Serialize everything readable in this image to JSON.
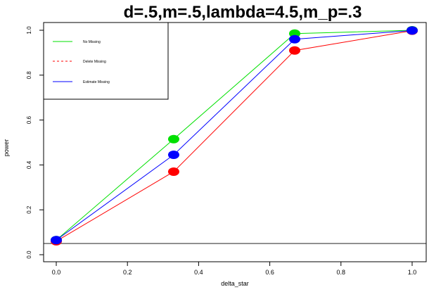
{
  "chart_data": {
    "type": "line",
    "title": "d=.5,m=.5,lambda=4.5,m_p=.3",
    "xlabel": "delta_star",
    "ylabel": "power",
    "xlim": [
      0.0,
      1.0
    ],
    "ylim": [
      0.0,
      1.0
    ],
    "x_ticks": [
      0.0,
      0.2,
      0.4,
      0.6,
      0.8,
      1.0
    ],
    "x_tick_labels": [
      "0.0",
      "0.2",
      "0.4",
      "0.6",
      "0.8",
      "1.0"
    ],
    "y_ticks": [
      0.0,
      0.2,
      0.4,
      0.6,
      0.8,
      1.0
    ],
    "y_tick_labels": [
      "0.0",
      "0.2",
      "0.4",
      "0.6",
      "0.8",
      "1.0"
    ],
    "hline": 0.05,
    "legend_position": "top-left",
    "x": [
      0.0,
      0.33,
      0.67,
      1.0
    ],
    "series": [
      {
        "name": "No Missing",
        "color": "#00e000",
        "dash": "solid",
        "values": [
          0.065,
          0.515,
          0.985,
          1.0
        ]
      },
      {
        "name": "Delete Missing",
        "color": "#ff0000",
        "dash": "dashed",
        "values": [
          0.06,
          0.37,
          0.91,
          0.998
        ]
      },
      {
        "name": "Estimate Missing",
        "color": "#0000ff",
        "dash": "solid",
        "values": [
          0.065,
          0.445,
          0.96,
          0.999
        ]
      }
    ]
  }
}
